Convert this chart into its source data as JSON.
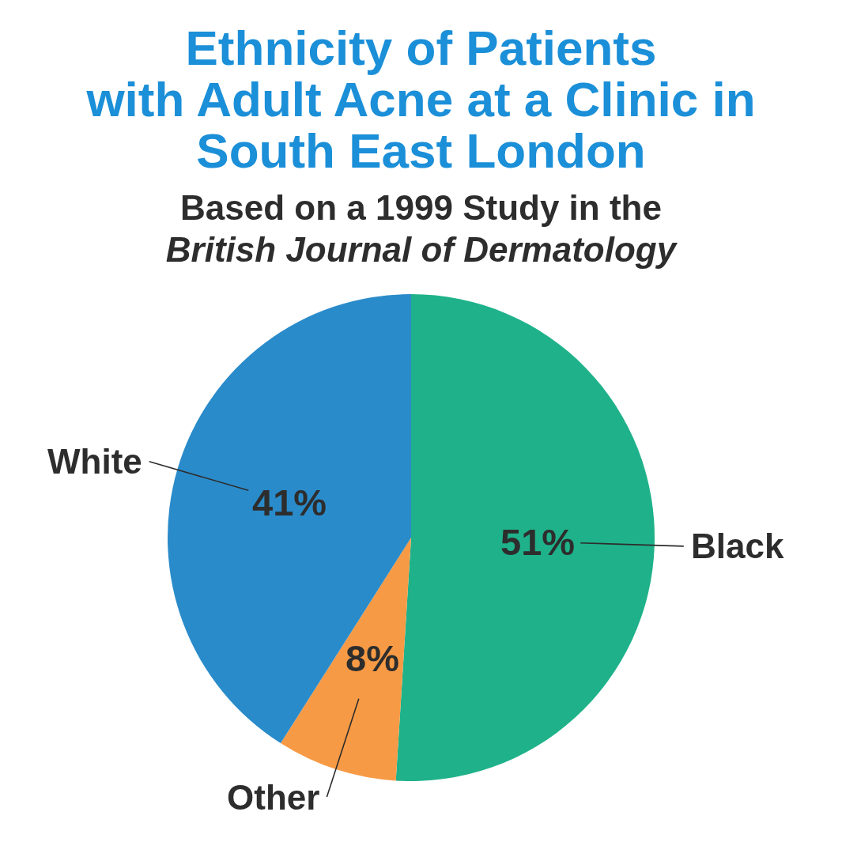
{
  "chart_data": {
    "type": "pie",
    "title": "Ethnicity of Patients\nwith Adult Acne at a Clinic in\nSouth East London",
    "subtitle": "Based on a 1999 Study in the\nBritish Journal of Dermatology",
    "categories": [
      "Black",
      "Other",
      "White"
    ],
    "values": [
      51,
      8,
      41
    ],
    "colors": [
      "#1fb28a",
      "#f79a45",
      "#2a8bca"
    ],
    "value_labels": [
      "51%",
      "8%",
      "41%"
    ],
    "legend": false
  }
}
